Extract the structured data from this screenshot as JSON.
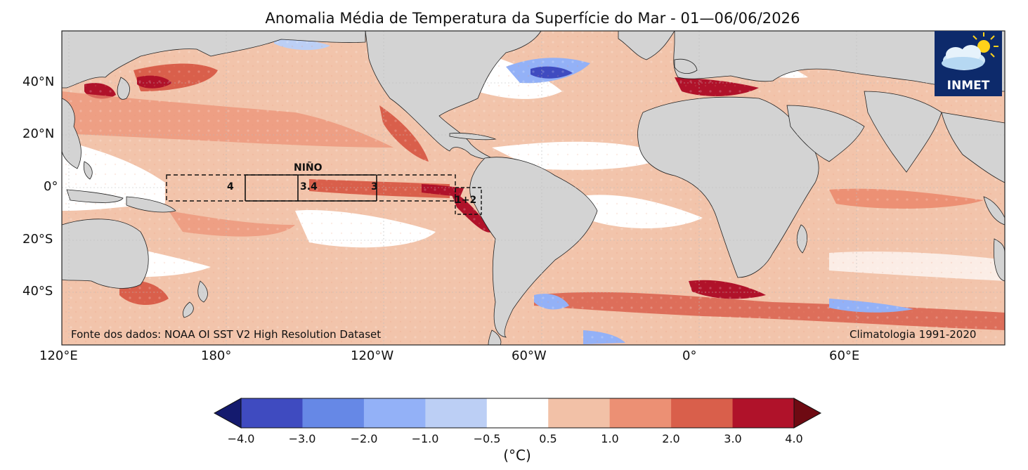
{
  "title": "Anomalia Média de Temperatura da Superfície do Mar - 01—06/06/2026",
  "source_note": "Fonte dos dados: NOAA OI SST V2 High Resolution Dataset",
  "climatology_note": "Climatologia 1991-2020",
  "logo": {
    "text": "INMET",
    "icon": "cloud-sun-icon",
    "bg_color": "#0d2a6b"
  },
  "lat_labels": [
    "40°N",
    "20°N",
    "0°",
    "20°S",
    "40°S"
  ],
  "lon_labels": [
    "120°E",
    "180°",
    "120°W",
    "60°W",
    "0°",
    "60°E"
  ],
  "nino_regions": {
    "header": "NIÑO",
    "labels": [
      "4",
      "3.4",
      "3",
      "1+2"
    ]
  },
  "colorbar": {
    "unit": "(°C)",
    "ticks": [
      "−4.0",
      "−3.0",
      "−2.0",
      "−1.0",
      "−0.5",
      "0.5",
      "1.0",
      "2.0",
      "3.0",
      "4.0"
    ],
    "colors": [
      "#3f4bc0",
      "#6688e6",
      "#93b1f7",
      "#bccff5",
      "#ffffff",
      "#f2c1a7",
      "#ec9074",
      "#d95f4b",
      "#b0122a"
    ],
    "under_color": "#141a6e",
    "over_color": "#6e0a12"
  },
  "colors": {
    "land": "#d3d3d3",
    "ocean_base": "#f2c4ab"
  }
}
